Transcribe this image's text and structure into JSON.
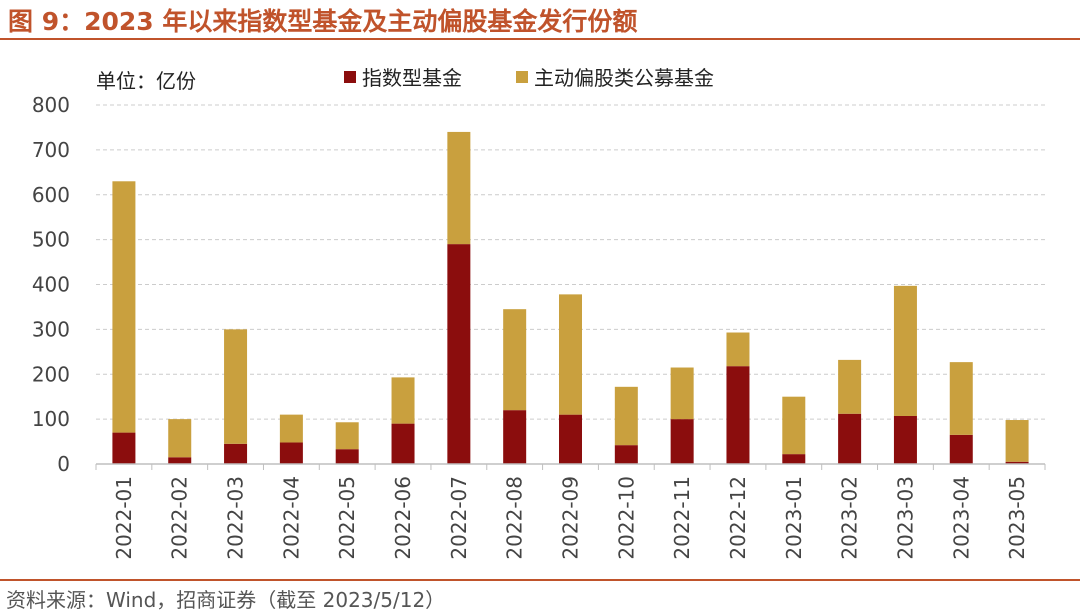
{
  "figure": {
    "title": "图 9：2023 年以来指数型基金及主动偏股基金发行份额",
    "source": "资料来源：Wind，招商证券（截至 2023/5/12）"
  },
  "chart_data": {
    "type": "bar",
    "stacked": true,
    "unit_label": "单位：亿份",
    "categories": [
      "2022-01",
      "2022-02",
      "2022-03",
      "2022-04",
      "2022-05",
      "2022-06",
      "2022-07",
      "2022-08",
      "2022-09",
      "2022-10",
      "2022-11",
      "2022-12",
      "2023-01",
      "2023-02",
      "2023-03",
      "2023-04",
      "2023-05"
    ],
    "series": [
      {
        "name": "指数型基金",
        "color": "#8b0d0d",
        "values": [
          70,
          15,
          45,
          48,
          33,
          90,
          490,
          120,
          110,
          42,
          100,
          218,
          22,
          112,
          107,
          65,
          5
        ]
      },
      {
        "name": "主动偏股类公募基金",
        "color": "#c9a03e",
        "values": [
          560,
          85,
          255,
          62,
          60,
          103,
          250,
          225,
          268,
          130,
          115,
          75,
          128,
          120,
          290,
          162,
          93
        ]
      }
    ],
    "ylim": [
      0,
      800
    ],
    "yticks": [
      0,
      100,
      200,
      300,
      400,
      500,
      600,
      700,
      800
    ],
    "grid": true,
    "legend_position": "top"
  }
}
